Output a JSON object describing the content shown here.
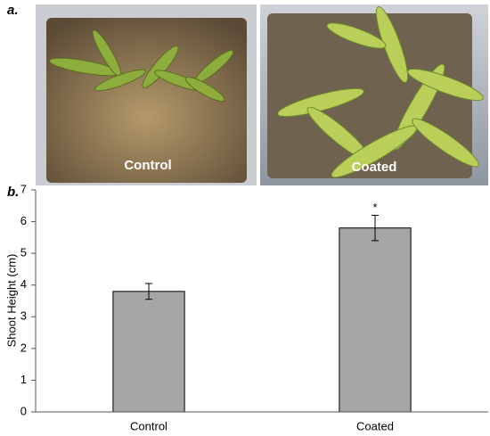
{
  "panels": {
    "a": "a.",
    "b": "b."
  },
  "photos": [
    "Control",
    "Coated"
  ],
  "chart_data": {
    "type": "bar",
    "ylabel": "Shoot Height (cm)",
    "categories": [
      "Control",
      "Coated"
    ],
    "values": [
      3.8,
      5.8
    ],
    "errors": [
      0.25,
      0.4
    ],
    "color": "#a6a6a6",
    "ylim": [
      0,
      7
    ],
    "yticks": [
      0,
      1,
      2,
      3,
      4,
      5,
      6,
      7
    ],
    "grid": false,
    "annotations": [
      {
        "text": "*",
        "x": "Coated"
      }
    ]
  }
}
